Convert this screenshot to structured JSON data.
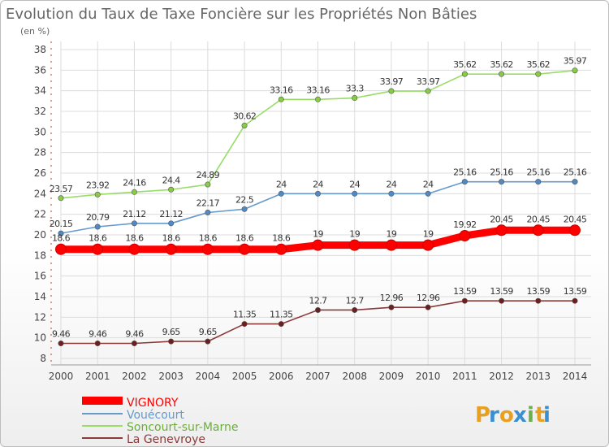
{
  "chart_data": {
    "type": "line",
    "title": "Evolution du Taux de Taxe Foncière sur les Propriétés Non Bâties",
    "subtitle": "(en %)",
    "xlabel": "",
    "ylabel": "",
    "ylim": [
      8,
      38
    ],
    "yticks": [
      8,
      10,
      12,
      14,
      16,
      18,
      20,
      22,
      24,
      26,
      28,
      30,
      32,
      34,
      36,
      38
    ],
    "grid": true,
    "legend_position": "bottom-left",
    "categories": [
      "2000",
      "2001",
      "2002",
      "2003",
      "2004",
      "2005",
      "2006",
      "2007",
      "2008",
      "2009",
      "2010",
      "2011",
      "2012",
      "2013",
      "2014"
    ],
    "series": [
      {
        "name": "Soncourt-sur-Marne",
        "color": "#99dd66",
        "marker": "#88cc44",
        "values": [
          23.57,
          23.92,
          24.16,
          24.4,
          24.89,
          30.62,
          33.16,
          33.16,
          33.3,
          33.97,
          33.97,
          35.62,
          35.62,
          35.62,
          35.97
        ],
        "labels": [
          "23.57",
          "23.92",
          "24.16",
          "24.4",
          "24.89",
          "30.62",
          "33.16",
          "33.16",
          "33.3",
          "33.97",
          "33.97",
          "35.62",
          "35.62",
          "35.62",
          "35.97"
        ]
      },
      {
        "name": "Vouécourt",
        "color": "#6699cc",
        "marker": "#4f89c7",
        "values": [
          20.15,
          20.79,
          21.12,
          21.12,
          22.17,
          22.5,
          24,
          24,
          24,
          24,
          24,
          25.16,
          25.16,
          25.16,
          25.16
        ],
        "labels": [
          "20.15",
          "20.79",
          "21.12",
          "21.12",
          "22.17",
          "22.5",
          "24",
          "24",
          "24",
          "24",
          "24",
          "25.16",
          "25.16",
          "25.16",
          "25.16"
        ]
      },
      {
        "name": "VIGNORY",
        "color": "#ff0000",
        "marker": "#ff0000",
        "values": [
          18.6,
          18.6,
          18.6,
          18.6,
          18.6,
          18.6,
          18.6,
          19,
          19,
          19,
          19,
          19.92,
          20.45,
          20.45,
          20.45
        ],
        "labels": [
          "18.6",
          "18.6",
          "18.6",
          "18.6",
          "18.6",
          "18.6",
          "18.6",
          "19",
          "19",
          "19",
          "19",
          "19.92",
          "20.45",
          "20.45",
          "20.45"
        ]
      },
      {
        "name": "La Genevroye",
        "color": "#8b3a3a",
        "marker": "#6b1f1f",
        "values": [
          9.46,
          9.46,
          9.46,
          9.65,
          9.65,
          11.35,
          11.35,
          12.7,
          12.7,
          12.96,
          12.96,
          13.59,
          13.59,
          13.59,
          13.59
        ],
        "labels": [
          "9.46",
          "9.46",
          "9.46",
          "9.65",
          "9.65",
          "11.35",
          "11.35",
          "12.7",
          "12.7",
          "12.96",
          "12.96",
          "13.59",
          "13.59",
          "13.59",
          "13.59"
        ]
      }
    ]
  },
  "legend": {
    "items": [
      {
        "name": "VIGNORY",
        "color": "#ff0000",
        "thick": true
      },
      {
        "name": "Vouécourt",
        "color": "#6699cc",
        "thick": false
      },
      {
        "name": "Soncourt-sur-Marne",
        "color": "#99dd66",
        "thick": false
      },
      {
        "name": "La Genevroye",
        "color": "#8b3a3a",
        "thick": false
      }
    ]
  },
  "brand": {
    "logo_text": "Proxiti"
  }
}
